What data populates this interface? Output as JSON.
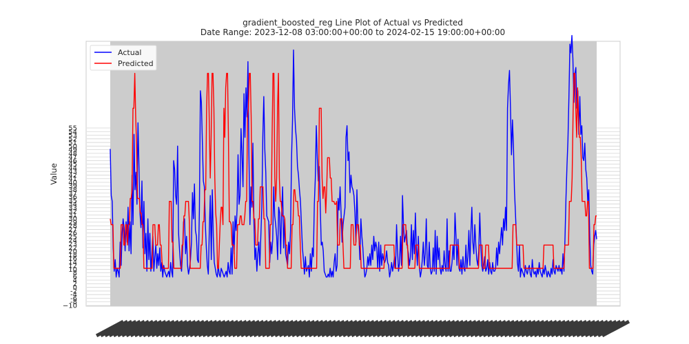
{
  "chart_data": {
    "type": "line",
    "title": "gradient_boosted_reg Line Plot of Actual vs Predicted",
    "subtitle": "Date Range: 2023-12-08 03:00:00+00:00 to 2024-02-15 19:00:00+00:00",
    "xlabel": "",
    "ylabel": "Value",
    "x_range": [
      "2023-12-08 03:00:00+00:00",
      "2024-02-15 19:00:00+00:00"
    ],
    "ylim": [
      -10,
      81
    ],
    "grid": true,
    "legend_placement": "top-left",
    "y_ticks": [
      -10,
      -8,
      -6,
      -4,
      -2,
      0,
      2,
      4,
      6,
      8,
      10,
      12,
      14,
      16,
      18,
      20,
      22,
      23,
      24,
      25,
      26,
      27,
      28,
      29,
      30,
      31,
      32,
      33,
      34,
      35,
      36,
      37,
      38,
      39,
      40,
      41,
      42,
      43,
      44,
      45,
      46,
      47,
      48,
      49,
      50,
      51,
      52,
      53,
      54,
      55
    ],
    "x_tick_count": 120,
    "series": [
      {
        "name": "Actual",
        "color": "#0000ff",
        "values": [
          44,
          28,
          26,
          10,
          2,
          6,
          0,
          3,
          2,
          0,
          12,
          4,
          15,
          20,
          17,
          9,
          19,
          12,
          24,
          9,
          19,
          8,
          35,
          18,
          49,
          30,
          36,
          25,
          53,
          38,
          22,
          17,
          33,
          10,
          26,
          8,
          15,
          2,
          20,
          6,
          15,
          2,
          8,
          14,
          2,
          7,
          11,
          3,
          8,
          4,
          10,
          2,
          5,
          0,
          4,
          2,
          1,
          0,
          1,
          2,
          0,
          5,
          2,
          0,
          40,
          37,
          28,
          25,
          45,
          15,
          9,
          4,
          2,
          9,
          19,
          20,
          8,
          14,
          4,
          1,
          3,
          6,
          12,
          29,
          20,
          32,
          16,
          14,
          6,
          5,
          23,
          64,
          60,
          46,
          33,
          31,
          18,
          10,
          4,
          1,
          16,
          28,
          6,
          30,
          14,
          5,
          3,
          1,
          0,
          4,
          1,
          0,
          3,
          2,
          1,
          0,
          1,
          2,
          0,
          5,
          2,
          1,
          10,
          1,
          19,
          8,
          21,
          16,
          23,
          42,
          25,
          28,
          51,
          42,
          31,
          63,
          48,
          65,
          55,
          74,
          42,
          18,
          31,
          24,
          46,
          20,
          6,
          10,
          2,
          8,
          12,
          4,
          14,
          24,
          48,
          62,
          44,
          36,
          21,
          20,
          19,
          5,
          12,
          8,
          13,
          31,
          21,
          18,
          14,
          6,
          24,
          22,
          8,
          22,
          31,
          10,
          20,
          8,
          6,
          4,
          12,
          8,
          16,
          41,
          54,
          78,
          58,
          51,
          47,
          38,
          35,
          30,
          26,
          18,
          10,
          6,
          1,
          7,
          2,
          3,
          4,
          0,
          8,
          2,
          10,
          7,
          25,
          34,
          52,
          41,
          33,
          38,
          24,
          11,
          12,
          9,
          2,
          1,
          0,
          0,
          1,
          0,
          3,
          0,
          2,
          0,
          5,
          8,
          2,
          4,
          27,
          23,
          31,
          22,
          12,
          18,
          21,
          24,
          48,
          52,
          40,
          43,
          29,
          35,
          31,
          30,
          28,
          22,
          12,
          30,
          17,
          14,
          6,
          20,
          14,
          10,
          4,
          0,
          1,
          3,
          7,
          4,
          8,
          4,
          11,
          6,
          14,
          9,
          12,
          10,
          3,
          12,
          2,
          11,
          4,
          8,
          6,
          5,
          6,
          9,
          5,
          4,
          0,
          2,
          5,
          2,
          4,
          7,
          3,
          18,
          9,
          2,
          5,
          14,
          4,
          28,
          18,
          12,
          14,
          16,
          10,
          8,
          4,
          7,
          18,
          6,
          16,
          8,
          22,
          10,
          4,
          14,
          4,
          0,
          2,
          6,
          12,
          4,
          8,
          20,
          4,
          3,
          12,
          3,
          1,
          2,
          10,
          2,
          16,
          1,
          14,
          6,
          10,
          3,
          1,
          4,
          2,
          9,
          4,
          2,
          20,
          2,
          9,
          2,
          2,
          5,
          11,
          6,
          22,
          14,
          4,
          13,
          3,
          2,
          6,
          1,
          7,
          3,
          2,
          11,
          3,
          7,
          16,
          4,
          15,
          24,
          12,
          8,
          18,
          11,
          6,
          4,
          9,
          22,
          11,
          4,
          2,
          4,
          7,
          2,
          3,
          6,
          1,
          5,
          2,
          1,
          5,
          2,
          2,
          3,
          10,
          4,
          12,
          8,
          13,
          17,
          11,
          20,
          16,
          24,
          16,
          58,
          66,
          71,
          58,
          42,
          54,
          45,
          30,
          22,
          14,
          5,
          2,
          11,
          0,
          3,
          2,
          1,
          0,
          4,
          2,
          1,
          3,
          4,
          1,
          0,
          6,
          2,
          1,
          2,
          0,
          3,
          1,
          5,
          2,
          1,
          0,
          3,
          1,
          4,
          2,
          0,
          2,
          1,
          0,
          3,
          1,
          6,
          2,
          1,
          4,
          3,
          2,
          4,
          2,
          3,
          1,
          8,
          2,
          13,
          27,
          38,
          47,
          62,
          80,
          77,
          83,
          75,
          60,
          70,
          72,
          58,
          64,
          49,
          62,
          49,
          52,
          41,
          40,
          46,
          37,
          34,
          26,
          30,
          14,
          4,
          2,
          1,
          11,
          14,
          16,
          13
        ]
      },
      {
        "name": "Predicted",
        "color": "#ff0000",
        "values": [
          20,
          18,
          18,
          18,
          3,
          3,
          3,
          3,
          3,
          3,
          3,
          3,
          18,
          18,
          18,
          11,
          11,
          18,
          18,
          11,
          18,
          18,
          27,
          27,
          30,
          58,
          58,
          70,
          55,
          45,
          27,
          27,
          27,
          22,
          22,
          18,
          18,
          3,
          3,
          3,
          3,
          3,
          3,
          3,
          3,
          3,
          3,
          18,
          18,
          18,
          11,
          11,
          11,
          18,
          18,
          11,
          11,
          5,
          3,
          3,
          3,
          3,
          3,
          3,
          3,
          26,
          26,
          26,
          12,
          12,
          3,
          3,
          3,
          3,
          3,
          3,
          3,
          3,
          3,
          11,
          11,
          21,
          21,
          26,
          26,
          26,
          26,
          19,
          3,
          3,
          3,
          3,
          3,
          3,
          3,
          3,
          3,
          3,
          3,
          3,
          11,
          11,
          19,
          19,
          30,
          30,
          58,
          70,
          70,
          52,
          34,
          48,
          70,
          70,
          58,
          34,
          22,
          18,
          3,
          3,
          11,
          19,
          24,
          24,
          18,
          58,
          48,
          65,
          70,
          70,
          48,
          19,
          19,
          18,
          11,
          11,
          11,
          3,
          3,
          3,
          18,
          18,
          18,
          21,
          21,
          18,
          18,
          18,
          21,
          26,
          26,
          55,
          58,
          70,
          70,
          55,
          26,
          26,
          20,
          20,
          11,
          11,
          11,
          20,
          20,
          31,
          31,
          31,
          31,
          20,
          20,
          3,
          3,
          3,
          3,
          3,
          18,
          18,
          48,
          70,
          70,
          34,
          26,
          34,
          58,
          70,
          34,
          26,
          26,
          21,
          21,
          21,
          20,
          11,
          11,
          3,
          3,
          3,
          3,
          3,
          18,
          18,
          30,
          30,
          26,
          26,
          26,
          21,
          21,
          11,
          3,
          3,
          3,
          3,
          3,
          3,
          3,
          3,
          3,
          3,
          3,
          3,
          3,
          3,
          3,
          3,
          3,
          3,
          26,
          26,
          58,
          58,
          58,
          34,
          27,
          31,
          31,
          22,
          30,
          41,
          41,
          41,
          34,
          34,
          26,
          26,
          26,
          25,
          25,
          26,
          11,
          11,
          11,
          20,
          20,
          20,
          11,
          3,
          3,
          3,
          3,
          3,
          3,
          3,
          3,
          18,
          18,
          18,
          11,
          11,
          11,
          18,
          18,
          18,
          11,
          11,
          3,
          3,
          3,
          3,
          3,
          3,
          3,
          3,
          3,
          3,
          3,
          3,
          3,
          3,
          3,
          3,
          3,
          3,
          3,
          3,
          3,
          3,
          3,
          3,
          3,
          3,
          11,
          11,
          11,
          11,
          11,
          11,
          11,
          11,
          11,
          11,
          11,
          3,
          3,
          3,
          3,
          3,
          3,
          3,
          3,
          3,
          18,
          18,
          18,
          18,
          11,
          11,
          3,
          3,
          3,
          3,
          3,
          3,
          3,
          3,
          11,
          11,
          11,
          11,
          3,
          3,
          3,
          3,
          3,
          3,
          3,
          3,
          3,
          3,
          3,
          3,
          3,
          3,
          3,
          3,
          3,
          3,
          3,
          3,
          3,
          3,
          3,
          3,
          3,
          3,
          3,
          3,
          3,
          3,
          3,
          3,
          3,
          3,
          11,
          11,
          11,
          11,
          11,
          11,
          11,
          11,
          11,
          11,
          3,
          3,
          3,
          3,
          3,
          3,
          3,
          3,
          3,
          3,
          3,
          3,
          3,
          3,
          3,
          3,
          3,
          3,
          3,
          3,
          3,
          3,
          11,
          11,
          11,
          11,
          3,
          3,
          3,
          11,
          11,
          11,
          11,
          3,
          3,
          3,
          3,
          3,
          3,
          3,
          3,
          3,
          3,
          3,
          3,
          3,
          3,
          3,
          3,
          3,
          3,
          3,
          3,
          3,
          3,
          3,
          3,
          3,
          3,
          18,
          18,
          18,
          18,
          11,
          11,
          11,
          11,
          11,
          11,
          11,
          11,
          3,
          3,
          3,
          3,
          3,
          3,
          3,
          3,
          3,
          3,
          3,
          3,
          3,
          3,
          3,
          3,
          3,
          3,
          3,
          3,
          3,
          3,
          11,
          11,
          11,
          11,
          11,
          11,
          11,
          11,
          11,
          11,
          11,
          3,
          3,
          3,
          3,
          3,
          3,
          3,
          3,
          3,
          3,
          3,
          3,
          11,
          11,
          11,
          11,
          11,
          26,
          26,
          26,
          34,
          55,
          70,
          70,
          58,
          48,
          65,
          55,
          48,
          48,
          41,
          26,
          26,
          26,
          26,
          21,
          21,
          26,
          26,
          3,
          3,
          3,
          3,
          3,
          18,
          18,
          21,
          21
        ]
      }
    ]
  }
}
